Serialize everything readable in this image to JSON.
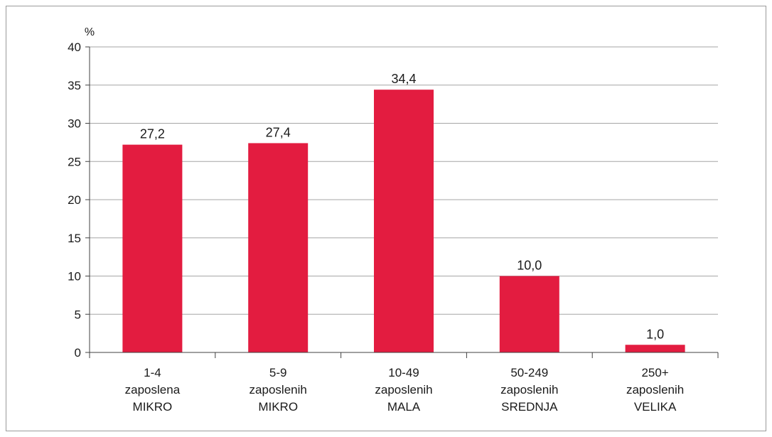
{
  "chart_data": {
    "type": "bar",
    "unit": "%",
    "categories": [
      [
        "1-4",
        "zaposlena",
        "MIKRO"
      ],
      [
        "5-9",
        "zaposlenih",
        "MIKRO"
      ],
      [
        "10-49",
        "zaposlenih",
        "MALA"
      ],
      [
        "50-249",
        "zaposlenih",
        "SREDNJA"
      ],
      [
        "250+",
        "zaposlenih",
        "VELIKA"
      ]
    ],
    "values": [
      27.2,
      27.4,
      34.4,
      10.0,
      1.0
    ],
    "value_labels": [
      "27,2",
      "27,4",
      "34,4",
      "10,0",
      "1,0"
    ],
    "y_ticks": [
      0,
      5,
      10,
      15,
      20,
      25,
      30,
      35,
      40
    ],
    "ylim": [
      0,
      40
    ],
    "grid": true,
    "bar_color": "#e31c40",
    "grid_color": "#a6a6a6",
    "axis_color": "#404040"
  }
}
